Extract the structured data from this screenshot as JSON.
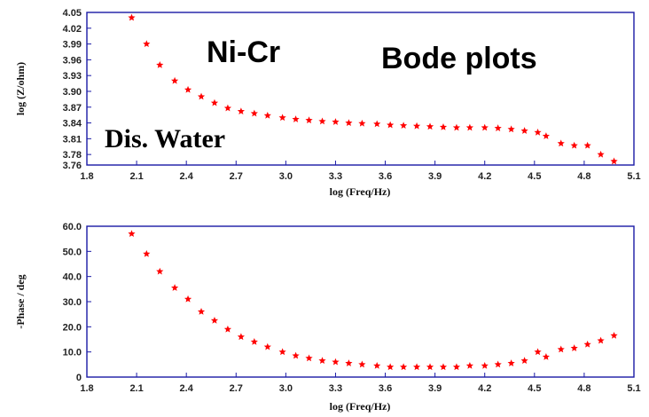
{
  "chart_data": [
    {
      "type": "scatter",
      "xlabel": "log (Freq/Hz)",
      "ylabel": "log (Z/ohm)",
      "xlim": [
        1.8,
        5.1
      ],
      "ylim": [
        3.76,
        4.05
      ],
      "xticks": [
        "1.8",
        "2.1",
        "2.4",
        "2.7",
        "3.0",
        "3.3",
        "3.6",
        "3.9",
        "4.2",
        "4.5",
        "4.8",
        "5.1"
      ],
      "yticks": [
        "3.76",
        "3.78",
        "3.81",
        "3.84",
        "3.87",
        "3.90",
        "3.93",
        "3.96",
        "3.99",
        "4.02",
        "4.05"
      ],
      "marker_color": "#ff0000",
      "annotations": [
        "Ni-Cr",
        "Bode plots",
        "Dis. Water"
      ],
      "x": [
        2.07,
        2.16,
        2.24,
        2.33,
        2.41,
        2.49,
        2.57,
        2.65,
        2.73,
        2.81,
        2.89,
        2.98,
        3.06,
        3.14,
        3.22,
        3.3,
        3.38,
        3.46,
        3.55,
        3.63,
        3.71,
        3.79,
        3.87,
        3.95,
        4.03,
        4.11,
        4.2,
        4.28,
        4.36,
        4.44,
        4.52,
        4.57,
        4.66,
        4.74,
        4.82,
        4.9,
        4.98
      ],
      "y": [
        4.04,
        3.99,
        3.95,
        3.92,
        3.903,
        3.89,
        3.878,
        3.868,
        3.862,
        3.858,
        3.854,
        3.85,
        3.847,
        3.845,
        3.843,
        3.842,
        3.84,
        3.839,
        3.838,
        3.836,
        3.835,
        3.834,
        3.833,
        3.832,
        3.831,
        3.831,
        3.831,
        3.83,
        3.828,
        3.825,
        3.822,
        3.815,
        3.801,
        3.797,
        3.797,
        3.78,
        3.767
      ]
    },
    {
      "type": "scatter",
      "xlabel": "log (Freq/Hz)",
      "ylabel": "-Phase / deg",
      "xlim": [
        1.8,
        5.1
      ],
      "ylim": [
        0,
        60
      ],
      "xticks": [
        "1.8",
        "2.1",
        "2.4",
        "2.7",
        "3.0",
        "3.3",
        "3.6",
        "3.9",
        "4.2",
        "4.5",
        "4.8",
        "5.1"
      ],
      "yticks": [
        "0",
        "10.0",
        "20.0",
        "30.0",
        "40.0",
        "50.0",
        "60.0"
      ],
      "marker_color": "#ff0000",
      "x": [
        2.07,
        2.16,
        2.24,
        2.33,
        2.41,
        2.49,
        2.57,
        2.65,
        2.73,
        2.81,
        2.89,
        2.98,
        3.06,
        3.14,
        3.22,
        3.3,
        3.38,
        3.46,
        3.55,
        3.63,
        3.71,
        3.79,
        3.87,
        3.95,
        4.03,
        4.11,
        4.2,
        4.28,
        4.36,
        4.44,
        4.52,
        4.57,
        4.66,
        4.74,
        4.82,
        4.9,
        4.98
      ],
      "y": [
        57.0,
        49.0,
        42.0,
        35.5,
        31.0,
        26.0,
        22.5,
        19.0,
        16.0,
        14.0,
        12.0,
        10.0,
        8.5,
        7.5,
        6.5,
        6.0,
        5.5,
        5.0,
        4.5,
        4.0,
        4.0,
        4.0,
        4.0,
        4.0,
        4.0,
        4.5,
        4.5,
        5.0,
        5.5,
        6.5,
        10.0,
        8.0,
        11.0,
        11.5,
        13.0,
        14.5,
        16.5
      ]
    }
  ]
}
